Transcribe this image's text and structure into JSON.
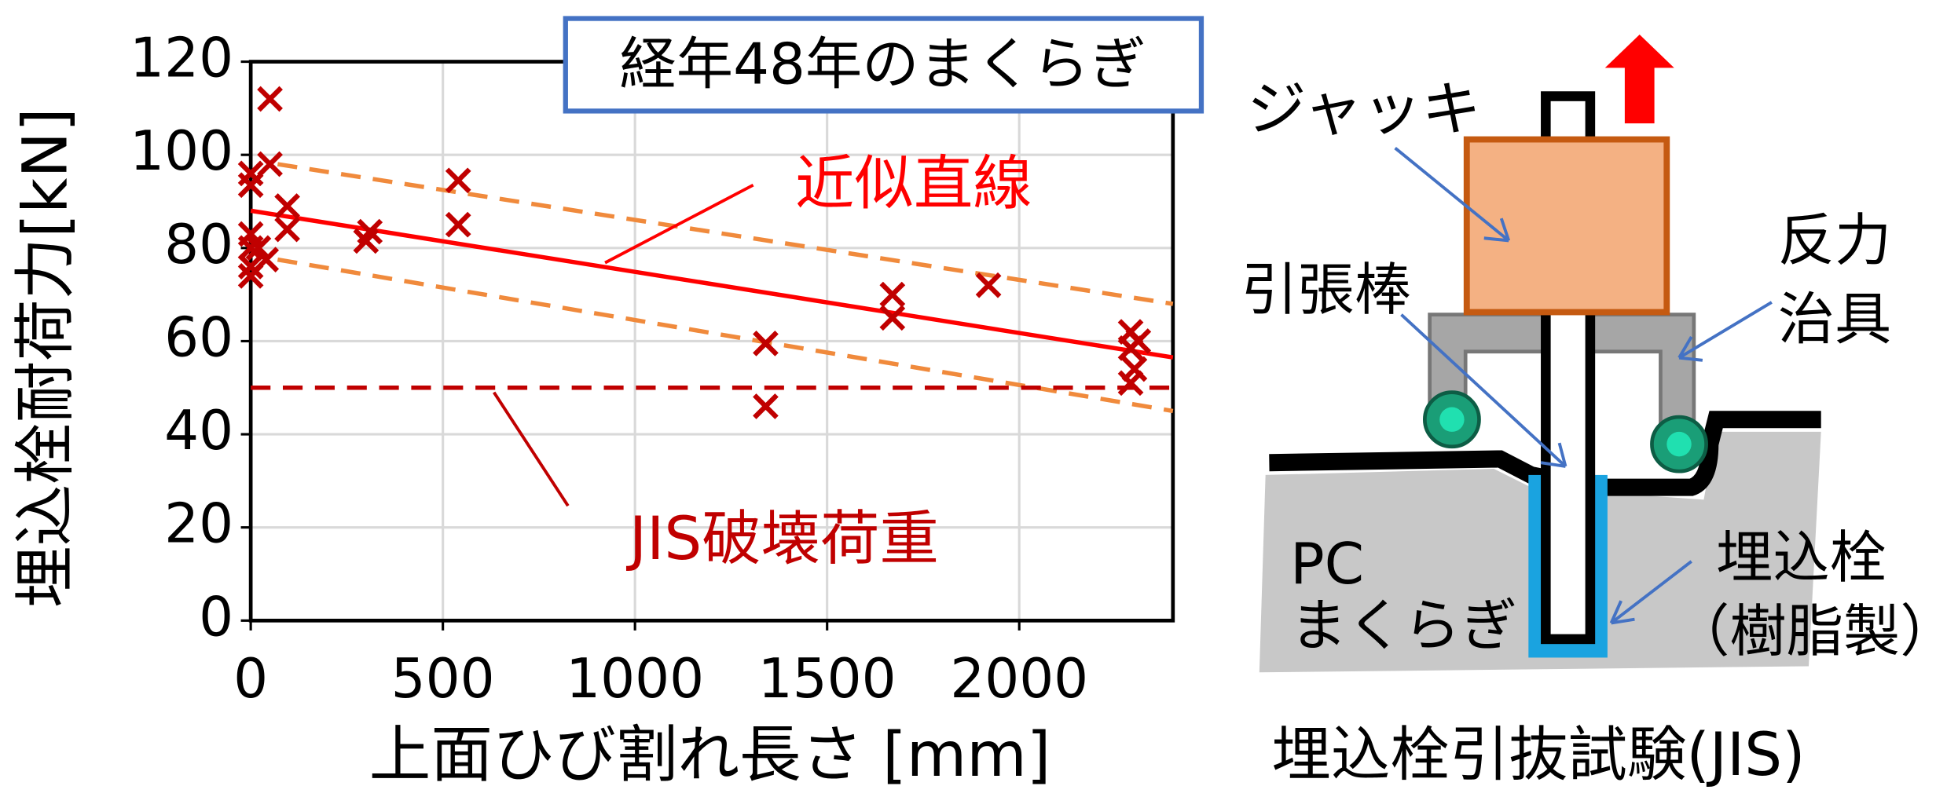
{
  "chart_data": {
    "type": "scatter",
    "title": "経年48年のまくらぎ",
    "x_label": "上面ひび割れ長さ [mm]",
    "y_label": "埋込栓耐荷力[kN]",
    "xlim": [
      0,
      2400
    ],
    "ylim": [
      0,
      120
    ],
    "xticks": [
      0,
      500,
      1000,
      1500,
      2000
    ],
    "yticks": [
      0,
      20,
      40,
      60,
      80,
      100,
      120
    ],
    "grid": true,
    "series": [
      {
        "color": "#c00000",
        "marker": "x",
        "x": [
          0,
          0,
          0,
          0,
          0,
          0,
          20,
          50,
          50,
          40,
          95,
          95,
          300,
          310,
          540,
          540,
          1340,
          1340,
          1670,
          1670,
          1920,
          2290,
          2290,
          2300,
          2290,
          2310
        ],
        "values": [
          96,
          93.5,
          83,
          80,
          76,
          74,
          80,
          112,
          98,
          77.5,
          89,
          84,
          81.5,
          83.5,
          94.5,
          85,
          59.5,
          46,
          70,
          65,
          72,
          62,
          58.5,
          54,
          51,
          60
        ]
      }
    ],
    "lines": [
      {
        "x": [
          0,
          2400
        ],
        "values": [
          88,
          56.5
        ],
        "color": "#ff0000",
        "dashed": false
      },
      {
        "x": [
          70,
          2400
        ],
        "values": [
          98,
          68
        ],
        "color": "#f08a3c",
        "dashed": true
      },
      {
        "x": [
          70,
          2400
        ],
        "values": [
          77.5,
          45
        ],
        "color": "#f08a3c",
        "dashed": true
      },
      {
        "x": [
          0,
          2400
        ],
        "values": [
          50,
          50
        ],
        "color": "#c00000",
        "dashed": true
      }
    ],
    "annotations": [
      {
        "text": "近似直線",
        "color": "#ff0000"
      },
      {
        "text": "JIS破壊荷重",
        "color": "#c00000"
      }
    ]
  },
  "diagram": {
    "jack": "ジャッキ",
    "jig_line1": "反力",
    "jig_line2": "治具",
    "rod": "引張棒",
    "sleeper_line1": "PC",
    "sleeper_line2": "まくらぎ",
    "plug_line1": "埋込栓",
    "plug_line2": "（樹脂製）",
    "caption": "埋込栓引抜試験(JIS)"
  }
}
